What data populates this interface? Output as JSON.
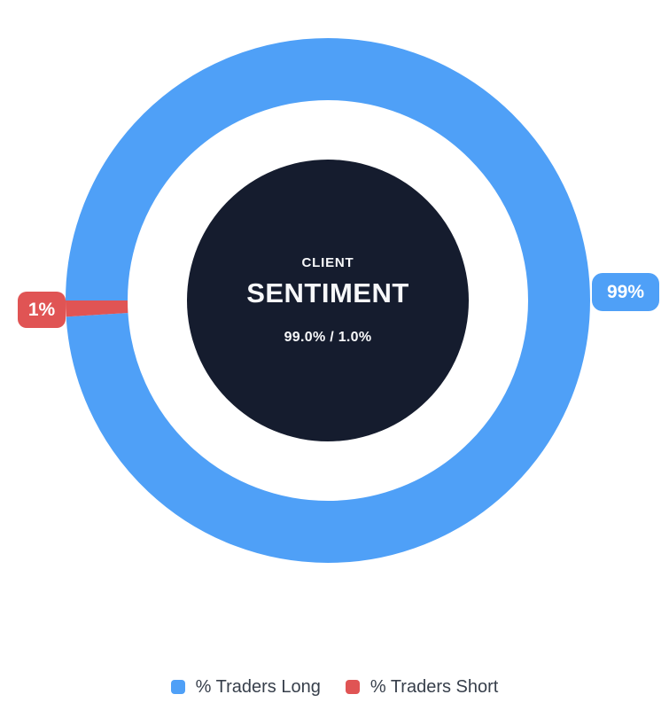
{
  "colors": {
    "long_blue": "#4FA0F7",
    "short_red": "#E05454",
    "center_disc": "#151C2E",
    "legend_text": "#373F4B",
    "badge_text": "#FFFFFF",
    "background": "#FFFFFF"
  },
  "chart_data": {
    "type": "pie",
    "subtype": "doughnut",
    "title": "CLIENT SENTIMENT",
    "categories": [
      "% Traders Long",
      "% Traders Short"
    ],
    "values": [
      99,
      1
    ],
    "colors": [
      "#4FA0F7",
      "#E05454"
    ],
    "data_labels": [
      "99%",
      "1%"
    ],
    "center_text": [
      "CLIENT",
      "SENTIMENT",
      "99.0% / 1.0%"
    ],
    "legend_position": "bottom",
    "start_position": "9-oclock",
    "direction": "clockwise"
  },
  "center": {
    "top_label": "CLIENT",
    "main_label": "SENTIMENT",
    "ratio_label": "99.0% / 1.0%"
  },
  "badges": {
    "long": "99%",
    "short": "1%"
  },
  "legend": {
    "long_label": "% Traders Long",
    "short_label": "% Traders Short"
  }
}
